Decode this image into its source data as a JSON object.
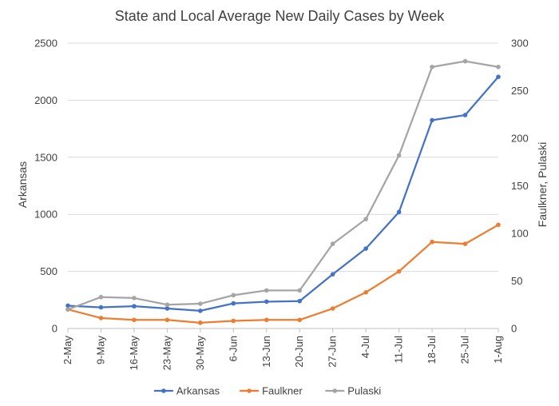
{
  "chart_data": {
    "type": "line",
    "title": "State and Local Average New Daily Cases by Week",
    "categories": [
      "2-May",
      "9-May",
      "16-May",
      "23-May",
      "30-May",
      "6-Jun",
      "13-Jun",
      "20-Jun",
      "27-Jun",
      "4-Jul",
      "11-Jul",
      "18-Jul",
      "25-Jul",
      "1-Aug"
    ],
    "y_left": {
      "label": "Arkansas",
      "ylim": [
        0,
        2500
      ],
      "ticks": [
        0,
        500,
        1000,
        1500,
        2000,
        2500
      ]
    },
    "y_right": {
      "label": "Faulkner, Pulaski",
      "ylim": [
        0,
        300
      ],
      "ticks": [
        0,
        50,
        100,
        150,
        200,
        250,
        300
      ]
    },
    "grid": true,
    "legend_position": "bottom",
    "series": [
      {
        "name": "Arkansas",
        "axis": "left",
        "color": "#4472C4",
        "marker": true,
        "values": [
          200,
          185,
          195,
          175,
          155,
          220,
          235,
          240,
          475,
          700,
          1020,
          1825,
          1870,
          2205
        ]
      },
      {
        "name": "Faulkner",
        "axis": "right",
        "color": "#ED7D31",
        "marker": true,
        "values": [
          20,
          11,
          9,
          9,
          6,
          8,
          9,
          9,
          21,
          38,
          60,
          91,
          89,
          109
        ]
      },
      {
        "name": "Pulaski",
        "axis": "right",
        "color": "#A5A5A5",
        "marker": true,
        "values": [
          20,
          33,
          32,
          25,
          26,
          35,
          40,
          40,
          89,
          115,
          182,
          275,
          281,
          275
        ]
      }
    ]
  }
}
